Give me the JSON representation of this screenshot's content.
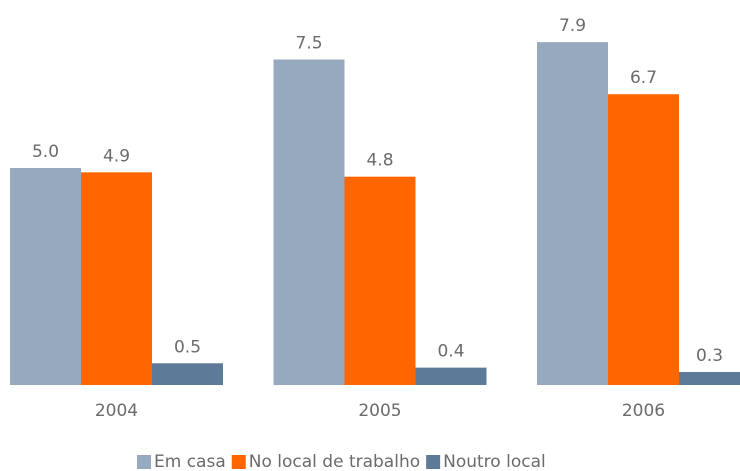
{
  "chart_data": {
    "type": "bar",
    "categories": [
      "2004",
      "2005",
      "2006"
    ],
    "series": [
      {
        "name": "Em casa",
        "color": "#97a9bf",
        "values": [
          5.0,
          7.5,
          7.9
        ],
        "value_labels": [
          "5.0",
          "7.5",
          "7.9"
        ]
      },
      {
        "name": "No local de trabalho",
        "color": "#ff6600",
        "values": [
          4.9,
          4.8,
          6.7
        ],
        "value_labels": [
          "4.9",
          "4.8",
          "6.7"
        ]
      },
      {
        "name": "Noutro local",
        "color": "#5e7a99",
        "values": [
          0.5,
          0.4,
          0.3
        ],
        "value_labels": [
          "0.5",
          "0.4",
          "0.3"
        ]
      }
    ]
  }
}
